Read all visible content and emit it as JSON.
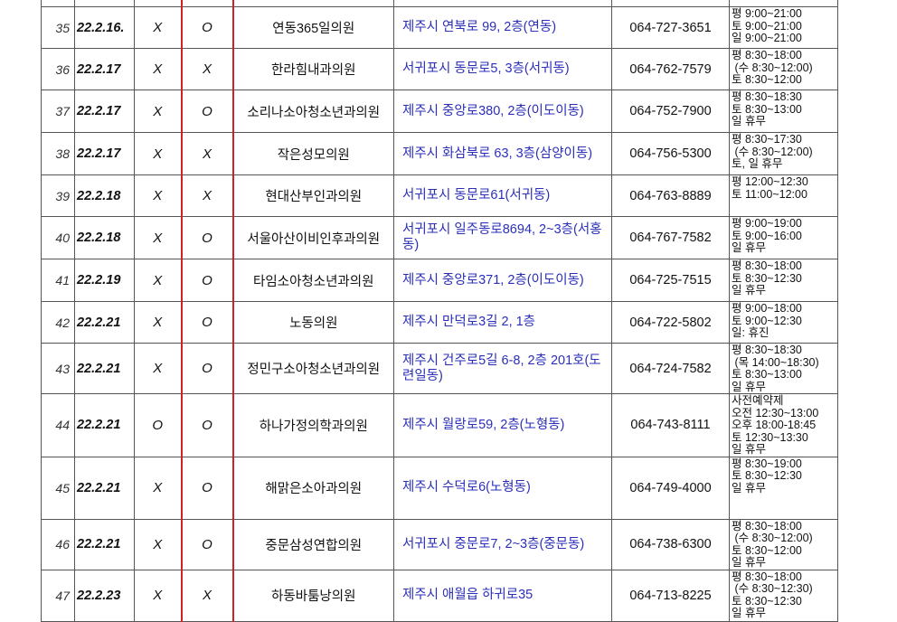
{
  "accent_colors": {
    "address": "#2b2fb8",
    "divider": "#d0202a"
  },
  "rows": [
    {
      "no": "35",
      "date": "22.2.16.",
      "a": "X",
      "b": "O",
      "name": "연동365일의원",
      "address": "제주시 연북로 99, 2층(연동)",
      "phone": "064-727-3651",
      "hours": "평 9:00~21:00\n토 9:00~21:00\n일 9:00~21:00"
    },
    {
      "no": "36",
      "date": "22.2.17",
      "a": "X",
      "b": "X",
      "name": "한라힘내과의원",
      "address": "서귀포시 동문로5, 3층(서귀동)",
      "phone": "064-762-7579",
      "hours": "평 8:30~18:00\n (수 8:30~12:00)\n토 8:30~12:00"
    },
    {
      "no": "37",
      "date": "22.2.17",
      "a": "X",
      "b": "O",
      "name": "소리나소아청소년과의원",
      "address": "제주시  중앙로380,  2층(이도이동)",
      "phone": "064-752-7900",
      "hours": "평 8:30~18:30\n토 8:30~13:00\n일 휴무"
    },
    {
      "no": "38",
      "date": "22.2.17",
      "a": "X",
      "b": "X",
      "name": "작은성모의원",
      "address": "제주시 화삼북로 63, 3층(삼양이동)",
      "phone": "064-756-5300",
      "hours": "평 8:30~17:30\n (수 8:30~12:00)\n토, 일 휴무"
    },
    {
      "no": "39",
      "date": "22.2.18",
      "a": "X",
      "b": "X",
      "name": "현대산부인과의원",
      "address": "서귀포시 동문로61(서귀동)",
      "phone": "064-763-8889",
      "hours": "평 12:00~12:30\n토 11:00~12:00"
    },
    {
      "no": "40",
      "date": "22.2.18",
      "a": "X",
      "b": "O",
      "name": "서울아산이비인후과의원",
      "address": "서귀포시  일주동로8694,  2~3층(서홍동)",
      "phone": "064-767-7582",
      "hours": "평 9:00~19:00\n토 9:00~16:00\n일 휴무"
    },
    {
      "no": "41",
      "date": "22.2.19",
      "a": "X",
      "b": "O",
      "name": "타임소아청소년과의원",
      "address": "제주시  중앙로371,  2층(이도이동)",
      "phone": "064-725-7515",
      "hours": "평 8:30~18:00\n토 8:30~12:30\n일 휴무"
    },
    {
      "no": "42",
      "date": "22.2.21",
      "a": "X",
      "b": "O",
      "name": "노동의원",
      "address": "제주시 만덕로3길 2, 1층",
      "phone": "064-722-5802",
      "hours": "평 9:00~18:00\n토 9:00~12:30\n일: 휴진"
    },
    {
      "no": "43",
      "date": "22.2.21",
      "a": "X",
      "b": "O",
      "name": "정민구소아청소년과의원",
      "address": "제주시  건주로5길  6-8,  2층  201호(도련일동)",
      "phone": "064-724-7582",
      "hours": "평 8:30~18:30\n (목 14:00~18:30)\n토 8:30~13:00\n일 휴무"
    },
    {
      "no": "44",
      "date": "22.2.21",
      "a": "O",
      "b": "O",
      "name": "하나가정의학과의원",
      "address": "제주시 월랑로59, 2층(노형동)",
      "phone": "064-743-8111",
      "hours": "사전예약제\n오전 12:30~13:00\n오후 18:00-18:45\n토 12:30~13:30\n일 휴무"
    },
    {
      "no": "45",
      "date": "22.2.21",
      "a": "X",
      "b": "O",
      "name": "해맑은소아과의원",
      "address": "제주시 수덕로6(노형동)",
      "phone": "064-749-4000",
      "hours": "평 8:30~19:00\n토 8:30~12:30\n일 휴무"
    },
    {
      "no": "46",
      "date": "22.2.21",
      "a": "X",
      "b": "O",
      "name": "중문삼성연합의원",
      "address": "서귀포시  중문로7,  2~3층(중문동)",
      "phone": "064-738-6300",
      "hours": "평 8:30~18:00\n (수 8:30~12:00)\n토 8:30~12:00\n일 휴무"
    },
    {
      "no": "47",
      "date": "22.2.23",
      "a": "X",
      "b": "X",
      "name": "하동바툼낭의원",
      "address": "제주시 애월읍 하귀로35",
      "phone": "064-713-8225",
      "hours": "평 8:30~18:00\n (수 8:30~12:30)\n토 8:30~12:30\n일 휴무"
    }
  ]
}
